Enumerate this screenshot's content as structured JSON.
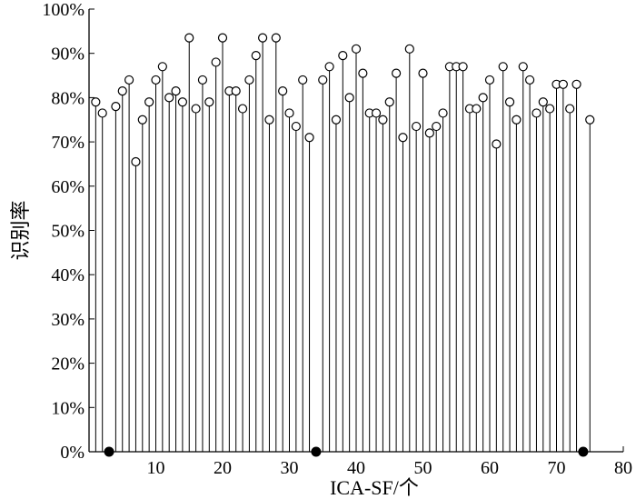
{
  "chart_data": {
    "type": "stem",
    "xlabel": "ICA-SF/个",
    "ylabel": "识别率",
    "xlim": [
      0,
      80
    ],
    "ylim": [
      0,
      100
    ],
    "xticks": [
      10,
      20,
      30,
      40,
      50,
      60,
      70,
      80
    ],
    "yticks": [
      0,
      10,
      20,
      30,
      40,
      50,
      60,
      70,
      80,
      90,
      100
    ],
    "ytick_labels": [
      "0%",
      "10%",
      "20%",
      "30%",
      "40%",
      "50%",
      "60%",
      "70%",
      "80%",
      "90%",
      "100%"
    ],
    "grid": false,
    "series": [
      {
        "x": [
          1,
          2,
          3,
          4,
          5,
          6,
          7,
          8,
          9,
          10,
          11,
          12,
          13,
          14,
          15,
          16,
          17,
          18,
          19,
          20,
          21,
          22,
          23,
          24,
          25,
          26,
          27,
          28,
          29,
          30,
          31,
          32,
          33,
          34,
          35,
          36,
          37,
          38,
          39,
          40,
          41,
          42,
          43,
          44,
          45,
          46,
          47,
          48,
          49,
          50,
          51,
          52,
          53,
          54,
          55,
          56,
          57,
          58,
          59,
          60,
          61,
          62,
          63,
          64,
          65,
          66,
          67,
          68,
          69,
          70,
          71,
          72,
          73,
          74,
          75
        ],
        "values": [
          79,
          76.5,
          0,
          78,
          81.5,
          84,
          65.5,
          75,
          79,
          84,
          87,
          80,
          81.5,
          79,
          93.5,
          77.5,
          84,
          79,
          88,
          93.5,
          81.5,
          81.5,
          77.5,
          84,
          89.5,
          93.5,
          75,
          93.5,
          81.5,
          76.5,
          73.5,
          84,
          71,
          0,
          84,
          87,
          75,
          89.5,
          80,
          91,
          85.5,
          76.5,
          76.5,
          75,
          79,
          85.5,
          71,
          91,
          73.5,
          85.5,
          72,
          73.5,
          76.5,
          87,
          87,
          87,
          77.5,
          77.5,
          80,
          84,
          69.5,
          87,
          79,
          75,
          87,
          84,
          76.5,
          79,
          77.5,
          83,
          83,
          77.5,
          83,
          0,
          75
        ]
      }
    ]
  }
}
